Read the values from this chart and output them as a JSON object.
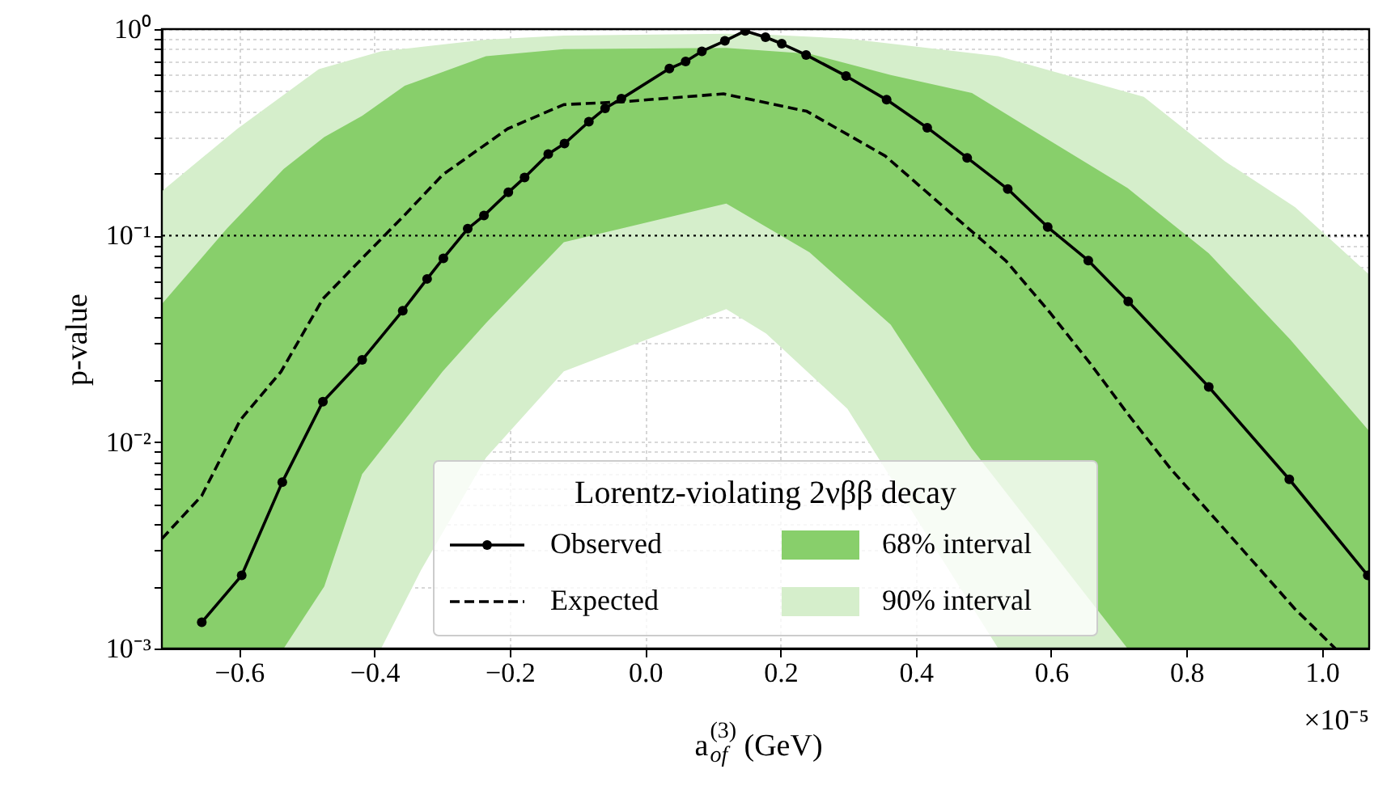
{
  "chart_data": {
    "type": "line",
    "xlabel": "a$^{(3)}$$_{of}$ (GeV)",
    "ylabel": "p-value",
    "legend_title": "Lorentz-violating 2νββ decay",
    "legend": "bottom",
    "log": "y",
    "grid": true,
    "xlim": [
      -0.714,
      1.07
    ],
    "xticks": [
      {
        "value": -0.6,
        "label": "−0.6"
      },
      {
        "value": -0.4,
        "label": "−0.4"
      },
      {
        "value": -0.2,
        "label": "−0.2"
      },
      {
        "value": 0,
        "label": "0.0"
      },
      {
        "value": 0.2,
        "label": "0.2"
      },
      {
        "value": 0.4,
        "label": "0.4"
      },
      {
        "value": 0.6,
        "label": "0.6"
      },
      {
        "value": 0.8,
        "label": "0.8"
      },
      {
        "value": 1,
        "label": "1.0"
      }
    ],
    "ylim": [
      0.001,
      1
    ],
    "yticks": [
      {
        "value": 0.001,
        "label": "10⁻³"
      },
      {
        "value": 0.002,
        "label": null
      },
      {
        "value": 0.003,
        "label": null
      },
      {
        "value": 0.004,
        "label": null
      },
      {
        "value": 0.005,
        "label": null
      },
      {
        "value": 0.006,
        "label": null
      },
      {
        "value": 0.007,
        "label": null
      },
      {
        "value": 0.008,
        "label": null
      },
      {
        "value": 0.009,
        "label": null
      },
      {
        "value": 0.01,
        "label": "10⁻²"
      },
      {
        "value": 0.02,
        "label": null
      },
      {
        "value": 0.03,
        "label": null
      },
      {
        "value": 0.04,
        "label": null
      },
      {
        "value": 0.05,
        "label": null
      },
      {
        "value": 0.06,
        "label": null
      },
      {
        "value": 0.07,
        "label": null
      },
      {
        "value": 0.08,
        "label": null
      },
      {
        "value": 0.09,
        "label": null
      },
      {
        "value": 0.1,
        "label": "10⁻¹"
      },
      {
        "value": 0.2,
        "label": null
      },
      {
        "value": 0.3,
        "label": null
      },
      {
        "value": 0.4,
        "label": null
      },
      {
        "value": 0.5,
        "label": null
      },
      {
        "value": 0.6,
        "label": null
      },
      {
        "value": 0.7,
        "label": null
      },
      {
        "value": 0.8,
        "label": null
      },
      {
        "value": 0.9,
        "label": null
      },
      {
        "value": 1,
        "label": "10⁰"
      }
    ],
    "ref_lines": [
      {
        "axis": "y",
        "value": 0.1,
        "color": "#000000",
        "line_style": "dotted"
      }
    ],
    "annotations": [
      "×10⁻⁵"
    ],
    "series": [
      {
        "name": "Observed",
        "color": "#000000",
        "marker": "circle",
        "line_style": "solid",
        "x": [
          -0.655,
          -0.596,
          -0.536,
          -0.476,
          -0.418,
          -0.358,
          -0.322,
          -0.298,
          -0.262,
          -0.238,
          -0.202,
          -0.178,
          -0.143,
          -0.119,
          -0.083,
          -0.059,
          -0.035,
          0.036,
          0.06,
          0.084,
          0.118,
          0.148,
          0.178,
          0.202,
          0.238,
          0.297,
          0.357,
          0.417,
          0.476,
          0.536,
          0.595,
          0.655,
          0.714,
          0.833,
          0.952,
          1.068
        ],
        "values": [
          0.00134,
          0.00226,
          0.0064,
          0.0157,
          0.025,
          0.0433,
          0.0617,
          0.0776,
          0.108,
          0.125,
          0.162,
          0.191,
          0.248,
          0.279,
          0.356,
          0.413,
          0.46,
          0.644,
          0.697,
          0.781,
          0.877,
          0.98,
          0.914,
          0.85,
          0.75,
          0.593,
          0.455,
          0.333,
          0.238,
          0.168,
          0.11,
          0.0757,
          0.048,
          0.0185,
          0.0066,
          0.00226
        ]
      },
      {
        "name": "Expected",
        "color": "#000000",
        "marker": "none",
        "line_style": "dashed",
        "x": [
          -0.714,
          -0.655,
          -0.598,
          -0.538,
          -0.476,
          -0.418,
          -0.355,
          -0.299,
          -0.203,
          -0.12,
          -0.036,
          0.116,
          0.239,
          0.355,
          0.474,
          0.534,
          0.598,
          0.658,
          0.714,
          0.777,
          0.841,
          0.897,
          0.96,
          1.02
        ],
        "values": [
          0.0034,
          0.0055,
          0.0128,
          0.0219,
          0.0494,
          0.0776,
          0.126,
          0.197,
          0.329,
          0.431,
          0.444,
          0.486,
          0.4,
          0.243,
          0.111,
          0.075,
          0.0425,
          0.024,
          0.0136,
          0.0074,
          0.0043,
          0.00267,
          0.00156,
          0.001
        ]
      },
      {
        "name": "68% interval",
        "type": "area",
        "color": "#88cf6b",
        "x": [
          -0.714,
          -0.618,
          -0.534,
          -0.474,
          -0.418,
          -0.355,
          -0.299,
          -0.235,
          -0.12,
          0.12,
          0.243,
          0.363,
          0.483,
          0.713,
          0.833,
          0.953,
          1.07
        ],
        "values": [
          null,
          null,
          null,
          null,
          null,
          null,
          null,
          null,
          null,
          null,
          null,
          null,
          null,
          null,
          null,
          null,
          null
        ],
        "upper": [
          0.0466,
          0.108,
          0.21,
          0.3,
          0.38,
          0.532,
          0.62,
          0.74,
          0.8,
          0.81,
          0.76,
          0.6,
          0.49,
          0.17,
          0.082,
          0.0315,
          0.0113
        ],
        "lower": [
          0.001,
          0.001,
          0.001,
          0.002,
          0.007,
          0.0128,
          0.022,
          0.0377,
          0.093,
          0.143,
          0.083,
          0.037,
          0.0093,
          0.001,
          0.001,
          0.001,
          0.001
        ]
      },
      {
        "name": "90% interval",
        "type": "area",
        "color": "#d5eecb",
        "x": [
          -0.714,
          -0.602,
          -0.482,
          -0.39,
          -0.331,
          -0.235,
          -0.12,
          0.12,
          0.179,
          0.299,
          0.522,
          0.737,
          0.857,
          0.961,
          1.07
        ],
        "values": [
          null,
          null,
          null,
          null,
          null,
          null,
          null,
          null,
          null,
          null,
          null,
          null,
          null,
          null,
          null
        ],
        "upper": [
          0.164,
          0.33,
          0.64,
          0.78,
          0.82,
          0.89,
          0.93,
          0.95,
          0.94,
          0.9,
          0.74,
          0.47,
          0.229,
          0.137,
          0.0647
        ],
        "lower": [
          0.001,
          0.001,
          0.001,
          0.001,
          0.0024,
          0.0084,
          0.022,
          0.044,
          0.0335,
          0.0145,
          0.001,
          0.001,
          0.001,
          0.001,
          0.001
        ]
      }
    ]
  }
}
